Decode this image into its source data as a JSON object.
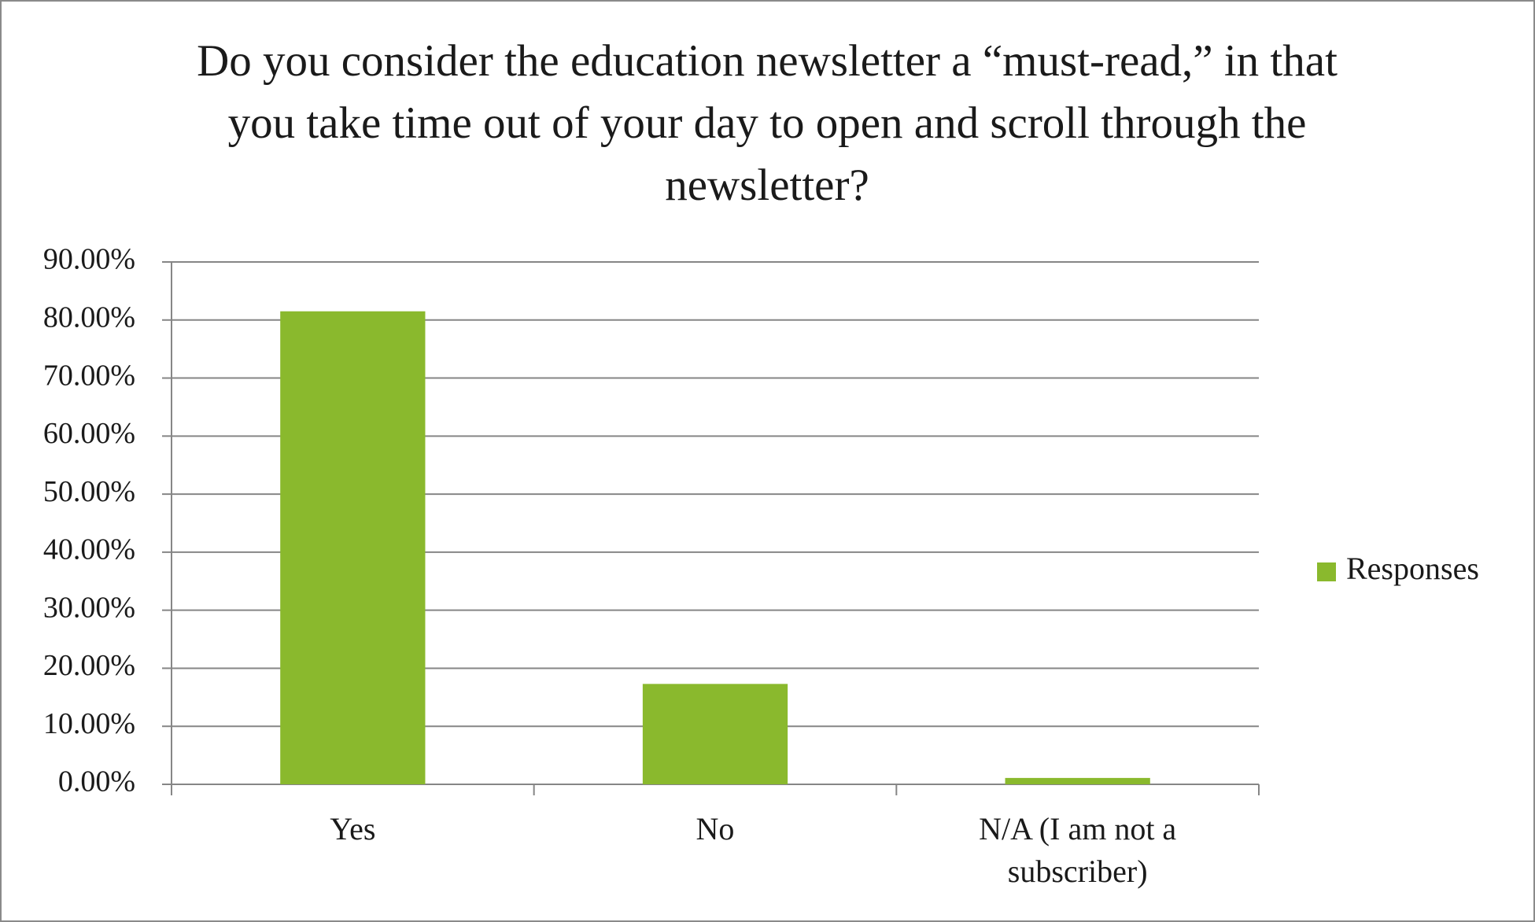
{
  "chart_data": {
    "type": "bar",
    "title": "Do you consider the education newsletter a “must-read,” in that you take time out of your day to open and scroll through the newsletter?",
    "categories": [
      "Yes",
      "No",
      "N/A (I am not a subscriber)"
    ],
    "series": [
      {
        "name": "Responses",
        "color": "#8ab92d",
        "values": [
          81.5,
          17.3,
          1.1
        ]
      }
    ],
    "ylim": [
      0,
      90
    ],
    "yticks": [
      {
        "value": 0,
        "label": "0.00%"
      },
      {
        "value": 10,
        "label": "10.00%"
      },
      {
        "value": 20,
        "label": "20.00%"
      },
      {
        "value": 30,
        "label": "30.00%"
      },
      {
        "value": 40,
        "label": "40.00%"
      },
      {
        "value": 50,
        "label": "50.00%"
      },
      {
        "value": 60,
        "label": "60.00%"
      },
      {
        "value": 70,
        "label": "70.00%"
      },
      {
        "value": 80,
        "label": "80.00%"
      },
      {
        "value": 90,
        "label": "90.00%"
      }
    ],
    "grid": true,
    "legend": "right"
  }
}
